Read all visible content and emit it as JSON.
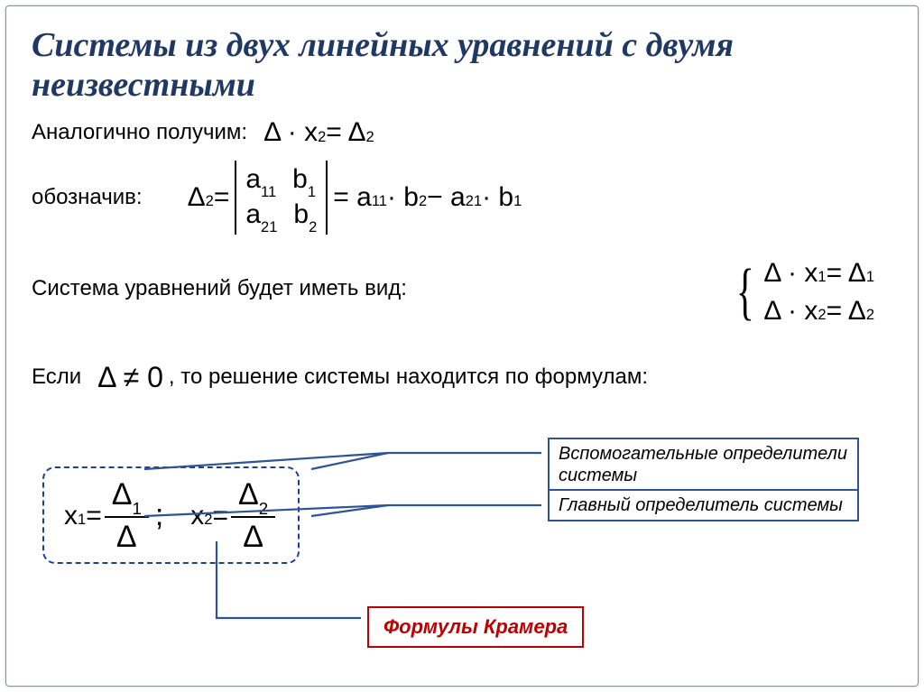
{
  "title": "Системы из двух линейных уравнений с двумя неизвестными",
  "lines": {
    "analogous": "Аналогично получим:",
    "denoting": "обозначив:",
    "system_form": "Система уравнений будет иметь вид:",
    "if_prefix": "Если",
    "if_suffix": ", то решение системы находится по формулам:"
  },
  "math": {
    "eq_top": "Δ · x<sub>2</sub> = Δ<sub>2</sub>",
    "det_lhs": "Δ<sub>2</sub> =",
    "det_rows": [
      [
        "a<sub>11</sub>",
        "b<sub>1</sub>"
      ],
      [
        "a<sub>21</sub>",
        "b<sub>2</sub>"
      ]
    ],
    "det_rhs": "= a<sub>11</sub> · b<sub>2</sub> − a<sub>21</sub> · b<sub>1</sub>",
    "sys1": "Δ · x<sub>1</sub> = Δ<sub>1</sub>",
    "sys2": "Δ · x<sub>2</sub> = Δ<sub>2</sub>",
    "cond": "Δ ≠ 0",
    "x1_lhs": "x<sub>1</sub> =",
    "x2_lhs": "x<sub>2</sub> =",
    "frac1_num": "Δ<sub>1</sub>",
    "frac1_den": "Δ",
    "semicolon": ";",
    "frac2_num": "Δ<sub>2</sub>",
    "frac2_den": "Δ"
  },
  "callouts": {
    "aux_det": "Вспомогательные определители системы",
    "main_det": "Главный определитель системы",
    "cramer": "Формулы Крамера"
  },
  "colors": {
    "title": "#1f3864",
    "callout_border": "#2e5496",
    "connector": "#2e5496",
    "red": "#c00000",
    "frame": "#8a9196"
  }
}
